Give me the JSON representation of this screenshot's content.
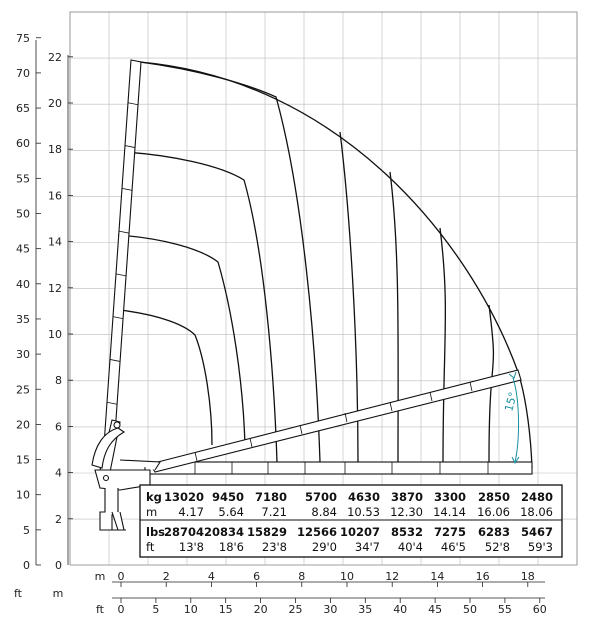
{
  "chart_data": {
    "type": "table",
    "x_axis": {
      "m_label": "m",
      "m_ticks": [
        "0",
        "2",
        "4",
        "6",
        "8",
        "10",
        "12",
        "14",
        "16",
        "18"
      ],
      "ft_label": "ft",
      "ft_ticks": [
        "0",
        "5",
        "10",
        "15",
        "20",
        "25",
        "30",
        "35",
        "40",
        "45",
        "50",
        "55",
        "60"
      ]
    },
    "y_axis": {
      "m_label": "m",
      "m_ticks": [
        "2",
        "4",
        "6",
        "8",
        "10",
        "12",
        "14",
        "16",
        "18",
        "20",
        "22"
      ],
      "ft_label": "ft",
      "ft_ticks": [
        "0",
        "5",
        "10",
        "15",
        "20",
        "25",
        "30",
        "35",
        "40",
        "45",
        "50",
        "55",
        "60",
        "65",
        "70",
        "75"
      ]
    },
    "angle_label": "15°",
    "load_table": {
      "kg_label": "kg",
      "kg_values": [
        "13020",
        "9450",
        "7180",
        "5700",
        "4630",
        "3870",
        "3300",
        "2850",
        "2480"
      ],
      "m_label": "m",
      "m_values": [
        "4.17",
        "5.64",
        "7.21",
        "8.84",
        "10.53",
        "12.30",
        "14.14",
        "16.06",
        "18.06"
      ],
      "lbs_label": "lbs",
      "lbs_values": [
        "28704",
        "20834",
        "15829",
        "12566",
        "10207",
        "8532",
        "7275",
        "6283",
        "5467"
      ],
      "ft_label": "ft",
      "ft_values": [
        "13'8",
        "18'6",
        "23'8",
        "29'0",
        "34'7",
        "40'4",
        "46'5",
        "52'8",
        "59'3"
      ]
    }
  }
}
